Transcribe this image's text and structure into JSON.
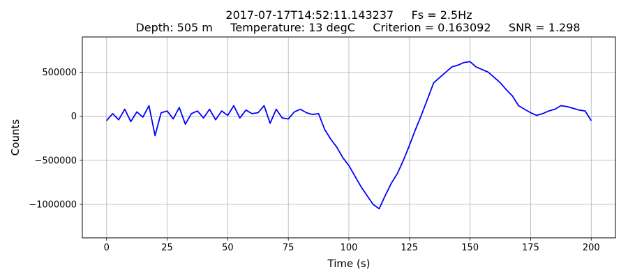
{
  "chart_data": {
    "type": "line",
    "title_line1": "2017-07-17T14:52:11.143237     Fs = 2.5Hz",
    "title_line2": "Depth: 505 m     Temperature: 13 degC     Criterion = 0.163092     SNR = 1.298",
    "xlabel": "Time (s)",
    "ylabel": "Counts",
    "xlim": [
      -10,
      210
    ],
    "ylim": [
      -1380000,
      900000
    ],
    "xticks": [
      0,
      25,
      50,
      75,
      100,
      125,
      150,
      175,
      200
    ],
    "xtick_labels": [
      "0",
      "25",
      "50",
      "75",
      "100",
      "125",
      "150",
      "175",
      "200"
    ],
    "yticks": [
      -1000000,
      -500000,
      0,
      500000
    ],
    "ytick_labels": [
      "−1000000",
      "−500000",
      "0",
      "500000"
    ],
    "grid": true,
    "line_color": "#0000ff",
    "series": [
      {
        "x": [
          0,
          2.5,
          5,
          7.5,
          10,
          12.5,
          15,
          17.5,
          20,
          22.5,
          25,
          27.5,
          30,
          32.5,
          35,
          37.5,
          40,
          42.5,
          45,
          47.5,
          50,
          52.5,
          55,
          57.5,
          60,
          62.5,
          65,
          67.5,
          70,
          72.5,
          75,
          77.5,
          80,
          82.5,
          85,
          87.5,
          90,
          92.5,
          95,
          97.5,
          100,
          102.5,
          105,
          107.5,
          110,
          112.5,
          115,
          117.5,
          120,
          122.5,
          125,
          127.5,
          130,
          132.5,
          135,
          137.5,
          140,
          142.5,
          145,
          147.5,
          150,
          152.5,
          155,
          157.5,
          160,
          162.5,
          165,
          167.5,
          170,
          172.5,
          175,
          177.5,
          180,
          182.5,
          185,
          187.5,
          190,
          192.5,
          195,
          197.5,
          200
        ],
        "y": [
          -50000,
          30000,
          -40000,
          80000,
          -60000,
          50000,
          -10000,
          120000,
          -220000,
          40000,
          60000,
          -30000,
          100000,
          -90000,
          30000,
          60000,
          -20000,
          80000,
          -40000,
          60000,
          10000,
          120000,
          -20000,
          70000,
          30000,
          40000,
          120000,
          -80000,
          80000,
          -20000,
          -30000,
          50000,
          80000,
          40000,
          20000,
          30000,
          -150000,
          -260000,
          -350000,
          -470000,
          -560000,
          -680000,
          -800000,
          -900000,
          -1000000,
          -1050000,
          -900000,
          -760000,
          -650000,
          -500000,
          -330000,
          -150000,
          20000,
          200000,
          380000,
          440000,
          500000,
          560000,
          580000,
          610000,
          620000,
          560000,
          530000,
          500000,
          440000,
          380000,
          300000,
          230000,
          120000,
          80000,
          40000,
          10000,
          30000,
          60000,
          80000,
          120000,
          110000,
          90000,
          70000,
          60000,
          -50000
        ]
      }
    ]
  }
}
